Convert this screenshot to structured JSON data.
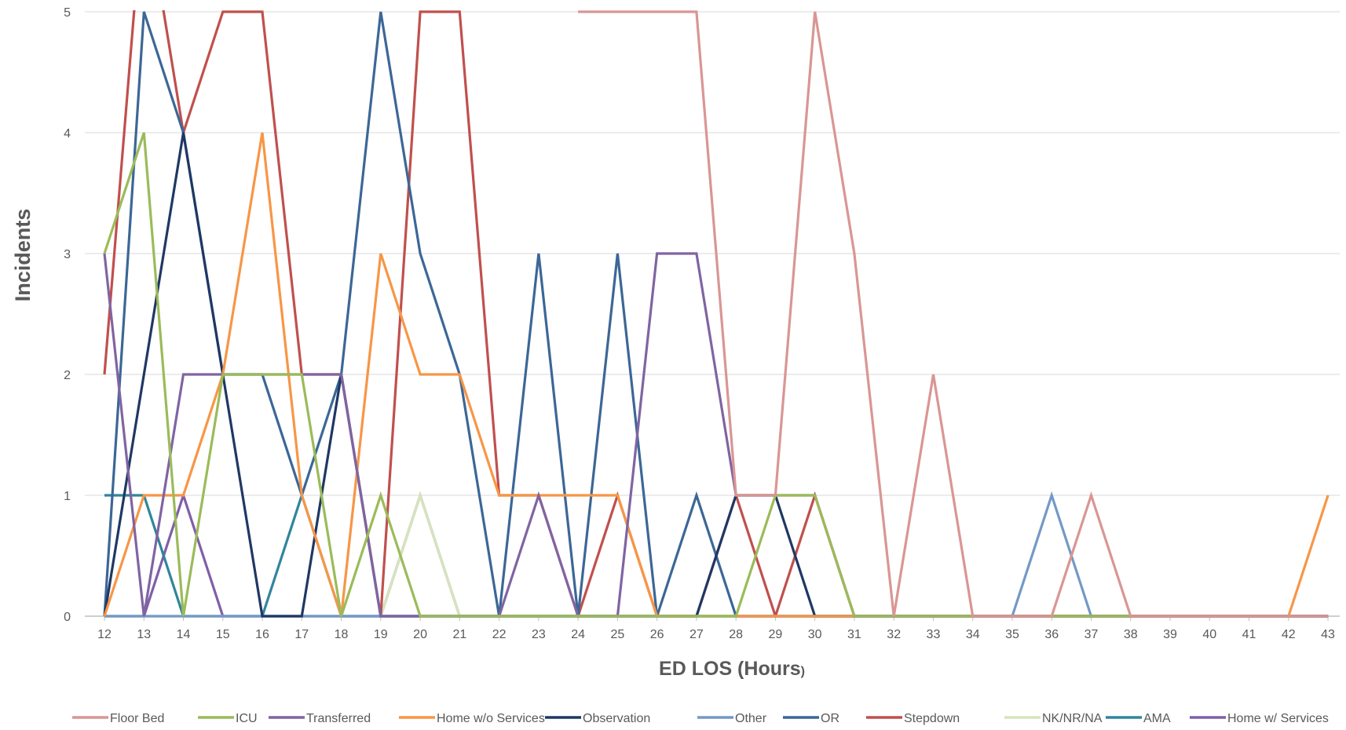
{
  "chart_data": {
    "type": "line",
    "title": "",
    "xlabel": "ED LOS (Hours)",
    "xlabel_main": "ED LOS (Hours",
    "xlabel_suffix": ")",
    "ylabel": "Incidents",
    "ylim": [
      0,
      5
    ],
    "yticks": [
      0,
      1,
      2,
      3,
      4,
      5
    ],
    "grid": true,
    "legend_position": "bottom",
    "x": [
      "12",
      "13",
      "14",
      "15",
      "16",
      "17",
      "18",
      "19",
      "20",
      "21",
      "22",
      "23",
      "24",
      "25",
      "26",
      "27",
      "28",
      "29",
      "30",
      "31",
      "32",
      "33",
      "34",
      "35",
      "36",
      "37",
      "38",
      "39",
      "40",
      "41",
      "42",
      "43"
    ],
    "series": [
      {
        "name": "Floor Bed",
        "color": "#d99694",
        "values": [
          null,
          null,
          null,
          null,
          null,
          null,
          null,
          null,
          null,
          null,
          null,
          null,
          5,
          5,
          5,
          5,
          1,
          1,
          5,
          3,
          0,
          2,
          0,
          0,
          0,
          1,
          0,
          0,
          0,
          0,
          0,
          0
        ]
      },
      {
        "name": "ICU",
        "color": "#9bbb59",
        "values": [
          3,
          4,
          0,
          2,
          2,
          2,
          0,
          1,
          0,
          0,
          0,
          0,
          0,
          0,
          0,
          0,
          0,
          1,
          1,
          0,
          0,
          0,
          0,
          0,
          0,
          0,
          0,
          0,
          0,
          0,
          0,
          0
        ]
      },
      {
        "name": "Transferred",
        "color": "#8064a2",
        "values": [
          3,
          0,
          2,
          2,
          2,
          2,
          2,
          0,
          0,
          0,
          0,
          1,
          0,
          0,
          3,
          3,
          1,
          1,
          1,
          0,
          0,
          0,
          0,
          0,
          0,
          0,
          0,
          0,
          0,
          0,
          0,
          0
        ]
      },
      {
        "name": "Home w/o Services",
        "color": "#f79646",
        "values": [
          0,
          1,
          1,
          2,
          4,
          1,
          0,
          3,
          2,
          2,
          1,
          1,
          1,
          1,
          0,
          0,
          0,
          0,
          0,
          0,
          0,
          0,
          0,
          0,
          0,
          0,
          0,
          0,
          0,
          0,
          0,
          1
        ]
      },
      {
        "name": "Observation",
        "color": "#1f3864",
        "values": [
          0,
          2,
          4,
          2,
          0,
          0,
          2,
          0,
          0,
          0,
          0,
          0,
          0,
          0,
          0,
          0,
          1,
          1,
          0,
          0,
          0,
          0,
          0,
          0,
          0,
          0,
          0,
          0,
          0,
          0,
          0,
          0
        ]
      },
      {
        "name": "Other",
        "color": "#7399c6",
        "values": [
          0,
          0,
          0,
          0,
          0,
          0,
          0,
          0,
          0,
          0,
          0,
          0,
          0,
          0,
          0,
          0,
          0,
          0,
          0,
          0,
          0,
          0,
          0,
          0,
          1,
          0,
          0,
          0,
          0,
          0,
          0,
          0
        ]
      },
      {
        "name": "OR",
        "color": "#3c6796",
        "values": [
          0,
          5,
          4,
          2,
          2,
          1,
          2,
          5,
          3,
          2,
          0,
          3,
          0,
          3,
          0,
          1,
          0,
          0,
          0,
          0,
          0,
          0,
          0,
          0,
          0,
          0,
          0,
          0,
          0,
          0,
          0,
          0
        ]
      },
      {
        "name": "Stepdown",
        "color": "#c0504d",
        "values": [
          2,
          6,
          4,
          5,
          5,
          2,
          2,
          0,
          5,
          5,
          1,
          1,
          0,
          1,
          0,
          0,
          1,
          0,
          1,
          0,
          0,
          0,
          0,
          0,
          0,
          0,
          0,
          0,
          0,
          0,
          0,
          0
        ]
      },
      {
        "name": "NK/NR/NA",
        "color": "#d7e4bd",
        "values": [
          0,
          0,
          0,
          0,
          0,
          0,
          0,
          0,
          1,
          0,
          0,
          0,
          0,
          0,
          0,
          0,
          0,
          0,
          0,
          0,
          0,
          0,
          0,
          0,
          0,
          0,
          0,
          0,
          0,
          0,
          0,
          0
        ]
      },
      {
        "name": "AMA",
        "color": "#31859c",
        "values": [
          1,
          1,
          0,
          0,
          0,
          1,
          0,
          0,
          0,
          0,
          0,
          0,
          0,
          0,
          0,
          0,
          0,
          0,
          0,
          0,
          0,
          0,
          0,
          0,
          0,
          0,
          0,
          0,
          0,
          0,
          0,
          0
        ]
      },
      {
        "name": "Home w/ Services",
        "color": "#7f5fa8",
        "values": [
          0,
          0,
          1,
          0,
          0,
          0,
          0,
          0,
          1,
          0,
          0,
          0,
          0,
          0,
          0,
          0,
          0,
          0,
          0,
          0,
          0,
          0,
          0,
          0,
          0,
          0,
          0,
          0,
          0,
          0,
          0,
          0
        ]
      }
    ]
  }
}
